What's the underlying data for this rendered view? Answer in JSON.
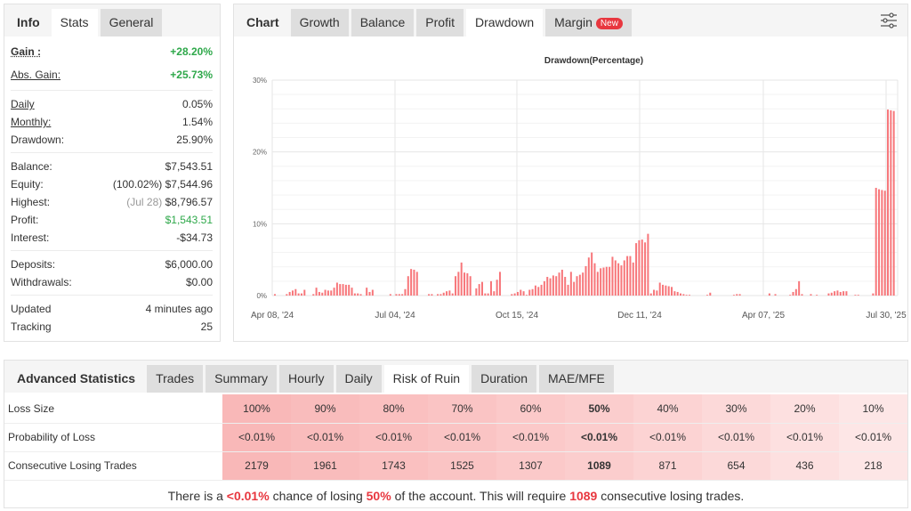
{
  "left_panel": {
    "tabs": [
      "Info",
      "Stats",
      "General"
    ],
    "active_tab": "Stats",
    "stats": [
      {
        "label": "Gain :",
        "value": "+28.20%"
      },
      {
        "label": "Abs. Gain:",
        "value": "+25.73%"
      },
      {
        "label": "Daily",
        "value": "0.05%"
      },
      {
        "label": "Monthly:",
        "value": "1.54%"
      },
      {
        "label": "Drawdown:",
        "value": "25.90%"
      },
      {
        "label": "Balance:",
        "value": "$7,543.51"
      },
      {
        "label": "Equity:",
        "prefix": "(100.02%)",
        "value": "$7,544.96"
      },
      {
        "label": "Highest:",
        "prefix": "(Jul 28)",
        "value": "$8,796.57"
      },
      {
        "label": "Profit:",
        "value": "$1,543.51"
      },
      {
        "label": "Interest:",
        "value": "-$34.73"
      },
      {
        "label": "Deposits:",
        "value": "$6,000.00"
      },
      {
        "label": "Withdrawals:",
        "value": "$0.00"
      },
      {
        "label": "Updated",
        "value": "4 minutes ago"
      },
      {
        "label": "Tracking",
        "value": "25"
      }
    ]
  },
  "chart_panel": {
    "tabs": [
      "Chart",
      "Growth",
      "Balance",
      "Profit",
      "Drawdown",
      "Margin"
    ],
    "new_badge": "New",
    "active_tab": "Drawdown",
    "settings_icon": "sliders-icon"
  },
  "chart_data": {
    "type": "bar",
    "title": "Drawdown(Percentage)",
    "ylim": [
      0,
      30
    ],
    "y_ticks": [
      "0%",
      "10%",
      "20%",
      "30%"
    ],
    "x_ticks": [
      "Apr 08, '24",
      "Jul 04, '24",
      "Oct 15, '24",
      "Dec 11, '24",
      "Apr 07, '25",
      "Jul 30, '25"
    ],
    "grid": true,
    "bar_color": "#f7767a",
    "values": [
      0.2,
      0,
      0,
      0,
      0.2,
      0.5,
      0.7,
      0.9,
      0.3,
      0.3,
      0.8,
      0,
      0,
      0.2,
      1.1,
      0.5,
      0.4,
      0.8,
      0.7,
      0.7,
      1.1,
      1.8,
      1.6,
      1.6,
      1.5,
      1.5,
      1.1,
      0.3,
      0.3,
      0.2,
      0,
      1.1,
      0.5,
      0.8,
      0,
      0,
      0,
      0,
      0,
      0.2,
      0,
      0.2,
      0.2,
      0.2,
      0.9,
      2.7,
      3.7,
      3.6,
      3.3,
      0,
      0,
      0,
      0.2,
      0.2,
      0,
      0.2,
      0.2,
      0.4,
      0.6,
      0.7,
      0.3,
      2.7,
      3.3,
      4.6,
      3.2,
      3.1,
      2.7,
      0,
      1.0,
      1.6,
      1.9,
      0.3,
      0.3,
      2.0,
      0.6,
      2.2,
      3.3,
      0,
      0,
      0,
      0.2,
      0.3,
      0.5,
      0.8,
      0.6,
      0.1,
      0.8,
      0.9,
      1.4,
      1.2,
      1.5,
      2.0,
      2.6,
      2.4,
      2.8,
      2.7,
      3.2,
      3.6,
      2.6,
      1.5,
      3.3,
      1.9,
      2.7,
      2.9,
      3.2,
      4.1,
      5.3,
      6.0,
      4.5,
      3.3,
      3.8,
      3.9,
      4.0,
      4.0,
      5.4,
      4.9,
      4.5,
      4.2,
      4.9,
      5.5,
      5.5,
      4.6,
      7.3,
      7.7,
      7.8,
      7.4,
      8.6,
      0.3,
      0.8,
      0.7,
      1.8,
      1.5,
      1.4,
      1.3,
      1.2,
      0.6,
      0.5,
      0.3,
      0.2,
      0.1,
      0.1,
      0,
      0,
      0,
      0,
      0,
      0.1,
      0.4,
      0,
      0,
      0,
      0,
      0,
      0,
      0,
      0.1,
      0.2,
      0.2,
      0,
      0,
      0,
      0,
      0,
      0,
      0,
      0,
      0,
      0.3,
      0,
      0.2,
      0,
      0,
      0,
      0,
      0.1,
      0.5,
      0.9,
      2.0,
      0.2,
      0,
      0,
      0.2,
      0,
      0.1,
      0,
      0,
      0,
      0.3,
      0.4,
      0.6,
      0.7,
      0.5,
      0.6,
      0.6,
      0,
      0,
      0.1,
      0.1,
      0,
      0,
      0,
      0,
      0.3,
      15.0,
      14.8,
      14.7,
      14.6,
      25.9,
      25.8,
      25.7
    ]
  },
  "advanced": {
    "title": "Advanced Statistics",
    "tabs": [
      "Trades",
      "Summary",
      "Hourly",
      "Daily",
      "Risk of Ruin",
      "Duration",
      "MAE/MFE"
    ],
    "active_tab": "Risk of Ruin",
    "rows": [
      {
        "label": "Loss Size",
        "cells": [
          "100%",
          "90%",
          "80%",
          "70%",
          "60%",
          "50%",
          "40%",
          "30%",
          "20%",
          "10%"
        ]
      },
      {
        "label": "Probability of Loss",
        "cells": [
          "<0.01%",
          "<0.01%",
          "<0.01%",
          "<0.01%",
          "<0.01%",
          "<0.01%",
          "<0.01%",
          "<0.01%",
          "<0.01%",
          "<0.01%"
        ]
      },
      {
        "label": "Consecutive Losing Trades",
        "cells": [
          "2179",
          "1961",
          "1743",
          "1525",
          "1307",
          "1089",
          "871",
          "654",
          "436",
          "218"
        ]
      }
    ],
    "highlight_column": "50%",
    "cell_colors": [
      "#f9b8b8",
      "#f9bcbc",
      "#fac0c0",
      "#fac4c4",
      "#fbc9c9",
      "#fbcdcd",
      "#fcd3d3",
      "#fcd9d9",
      "#fde0e0",
      "#fde6e6"
    ],
    "sentence": {
      "a": "There is a",
      "prob": "<0.01%",
      "b": "chance of losing",
      "loss": "50%",
      "c": "of the account. This will require",
      "trades": "1089",
      "d": "consecutive losing trades."
    }
  }
}
